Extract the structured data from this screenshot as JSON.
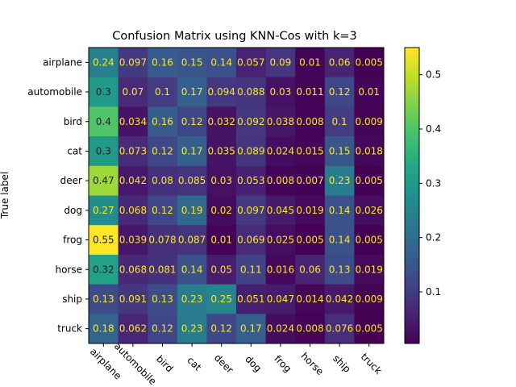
{
  "chart_data": {
    "type": "heatmap",
    "title": "Confusion Matrix using KNN-Cos with k=3",
    "ylabel": "True label",
    "xlabel": "",
    "labels": [
      "airplane",
      "automobile",
      "bird",
      "cat",
      "deer",
      "dog",
      "frog",
      "horse",
      "ship",
      "truck"
    ],
    "matrix": [
      [
        0.24,
        0.097,
        0.16,
        0.15,
        0.14,
        0.057,
        0.09,
        0.01,
        0.06,
        0.005
      ],
      [
        0.3,
        0.07,
        0.1,
        0.17,
        0.094,
        0.088,
        0.03,
        0.011,
        0.12,
        0.01
      ],
      [
        0.4,
        0.034,
        0.16,
        0.12,
        0.032,
        0.092,
        0.038,
        0.008,
        0.1,
        0.009
      ],
      [
        0.3,
        0.073,
        0.12,
        0.17,
        0.035,
        0.089,
        0.024,
        0.015,
        0.15,
        0.018
      ],
      [
        0.47,
        0.042,
        0.08,
        0.085,
        0.03,
        0.053,
        0.008,
        0.007,
        0.23,
        0.005
      ],
      [
        0.27,
        0.068,
        0.12,
        0.19,
        0.02,
        0.097,
        0.045,
        0.019,
        0.14,
        0.026
      ],
      [
        0.55,
        0.039,
        0.078,
        0.087,
        0.01,
        0.069,
        0.025,
        0.005,
        0.14,
        0.005
      ],
      [
        0.32,
        0.068,
        0.081,
        0.14,
        0.05,
        0.11,
        0.016,
        0.06,
        0.13,
        0.019
      ],
      [
        0.13,
        0.091,
        0.13,
        0.23,
        0.25,
        0.051,
        0.047,
        0.014,
        0.042,
        0.009
      ],
      [
        0.18,
        0.062,
        0.12,
        0.23,
        0.12,
        0.17,
        0.024,
        0.008,
        0.076,
        0.005
      ]
    ],
    "colorbar": {
      "min": 0.005,
      "max": 0.55,
      "ticks": [
        0.1,
        0.2,
        0.3,
        0.4,
        0.5
      ],
      "tick_labels": [
        "0.1",
        "0.2",
        "0.3",
        "0.4",
        "0.5"
      ],
      "colormap": "viridis"
    },
    "text_colors": {
      "on_dark": "#FDE725",
      "on_light": "#1a1a2e"
    }
  }
}
